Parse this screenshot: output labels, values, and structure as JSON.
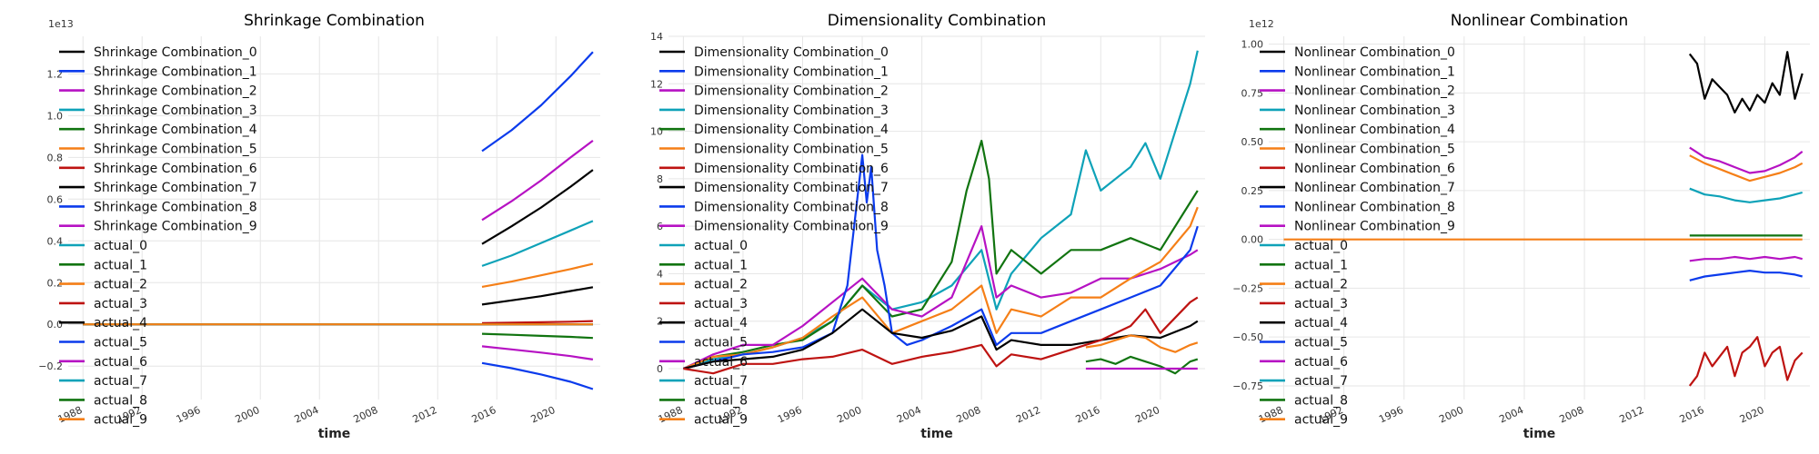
{
  "chart_data": [
    {
      "type": "line",
      "title": "Shrinkage Combination",
      "xlabel": "time",
      "ylabel": "",
      "offset_label": "1e13",
      "xlim": [
        1987,
        2023
      ],
      "ylim": [
        -0.36,
        1.38
      ],
      "x_ticks": [
        1988,
        1992,
        1996,
        2000,
        2004,
        2008,
        2012,
        2016,
        2020
      ],
      "y_ticks": [
        -0.2,
        0.0,
        0.2,
        0.4,
        0.6,
        0.8,
        1.0,
        1.2
      ],
      "y_tick_labels": [
        "−0.2",
        "0.0",
        "0.2",
        "0.4",
        "0.6",
        "0.8",
        "1.0",
        "1.2"
      ],
      "grid": true,
      "legend_position": "upper-left",
      "legend": [
        "Shrinkage Combination_0",
        "Shrinkage Combination_1",
        "Shrinkage Combination_2",
        "Shrinkage Combination_3",
        "Shrinkage Combination_4",
        "Shrinkage Combination_5",
        "Shrinkage Combination_6",
        "Shrinkage Combination_7",
        "Shrinkage Combination_8",
        "Shrinkage Combination_9",
        "actual_0",
        "actual_1",
        "actual_2",
        "actual_3",
        "actual_4",
        "actual_5",
        "actual_6",
        "actual_7",
        "actual_8",
        "actual_9"
      ],
      "series": [
        {
          "color": "#000000",
          "x": [
            2015,
            2017,
            2019,
            2021,
            2022.5
          ],
          "y": [
            0.385,
            0.47,
            0.56,
            0.66,
            0.74
          ]
        },
        {
          "color": "#0b3bec",
          "x": [
            2015,
            2017,
            2019,
            2021,
            2022.5
          ],
          "y": [
            0.83,
            0.93,
            1.05,
            1.19,
            1.305
          ]
        },
        {
          "color": "#b612c3",
          "x": [
            2015,
            2017,
            2019,
            2021,
            2022.5
          ],
          "y": [
            0.5,
            0.59,
            0.69,
            0.8,
            0.88
          ]
        },
        {
          "color": "#0ea2b8",
          "x": [
            2015,
            2017,
            2019,
            2021,
            2022.5
          ],
          "y": [
            0.28,
            0.33,
            0.39,
            0.45,
            0.495
          ]
        },
        {
          "color": "#117410",
          "x": [
            2015,
            2017,
            2019,
            2021,
            2022.5
          ],
          "y": [
            -0.045,
            -0.05,
            -0.055,
            -0.06,
            -0.065
          ]
        },
        {
          "color": "#f57f17",
          "x": [
            2015,
            2017,
            2019,
            2021,
            2022.5
          ],
          "y": [
            0.18,
            0.205,
            0.235,
            0.265,
            0.29
          ]
        },
        {
          "color": "#be1311",
          "x": [
            2015,
            2017,
            2019,
            2021,
            2022.5
          ],
          "y": [
            0.006,
            0.008,
            0.01,
            0.013,
            0.016
          ]
        },
        {
          "color": "#000000",
          "x": [
            2015,
            2017,
            2019,
            2021,
            2022.5
          ],
          "y": [
            0.095,
            0.115,
            0.135,
            0.16,
            0.178
          ]
        },
        {
          "color": "#0b3bec",
          "x": [
            2015,
            2017,
            2019,
            2021,
            2022.5
          ],
          "y": [
            -0.185,
            -0.21,
            -0.24,
            -0.275,
            -0.31
          ]
        },
        {
          "color": "#b612c3",
          "x": [
            2015,
            2017,
            2019,
            2021,
            2022.5
          ],
          "y": [
            -0.105,
            -0.12,
            -0.135,
            -0.152,
            -0.168
          ]
        },
        {
          "color": "#0ea2b8",
          "x": [
            1988,
            2022.5
          ],
          "y": [
            0.0,
            0.0
          ]
        },
        {
          "color": "#117410",
          "x": [
            1988,
            2022.5
          ],
          "y": [
            0.0,
            0.0
          ]
        },
        {
          "color": "#f57f17",
          "x": [
            1988,
            2022.5
          ],
          "y": [
            0.0,
            0.0
          ]
        },
        {
          "color": "#be1311",
          "x": [
            1988,
            2022.5
          ],
          "y": [
            0.0,
            0.0
          ]
        },
        {
          "color": "#000000",
          "x": [
            1988,
            2022.5
          ],
          "y": [
            0.0,
            0.0
          ]
        },
        {
          "color": "#0b3bec",
          "x": [
            1988,
            2022.5
          ],
          "y": [
            0.0,
            0.0
          ]
        },
        {
          "color": "#b612c3",
          "x": [
            1988,
            2022.5
          ],
          "y": [
            0.0,
            0.0
          ]
        },
        {
          "color": "#0ea2b8",
          "x": [
            1988,
            2022.5
          ],
          "y": [
            0.0,
            0.0
          ]
        },
        {
          "color": "#117410",
          "x": [
            1988,
            2022.5
          ],
          "y": [
            0.0,
            0.0
          ]
        },
        {
          "color": "#f57f17",
          "x": [
            1988,
            2022.5
          ],
          "y": [
            0.0,
            0.0
          ]
        }
      ]
    },
    {
      "type": "line",
      "title": "Dimensionality Combination",
      "xlabel": "time",
      "ylabel": "",
      "offset_label": "",
      "xlim": [
        1987,
        2023
      ],
      "ylim": [
        -1.3,
        14.0
      ],
      "x_ticks": [
        1988,
        1992,
        1996,
        2000,
        2004,
        2008,
        2012,
        2016,
        2020
      ],
      "y_ticks": [
        0,
        2,
        4,
        6,
        8,
        10,
        12,
        14
      ],
      "y_tick_labels": [
        "0",
        "2",
        "4",
        "6",
        "8",
        "10",
        "12",
        "14"
      ],
      "grid": true,
      "legend_position": "upper-left",
      "legend": [
        "Dimensionality Combination_0",
        "Dimensionality Combination_1",
        "Dimensionality Combination_2",
        "Dimensionality Combination_3",
        "Dimensionality Combination_4",
        "Dimensionality Combination_5",
        "Dimensionality Combination_6",
        "Dimensionality Combination_7",
        "Dimensionality Combination_8",
        "Dimensionality Combination_9",
        "actual_0",
        "actual_1",
        "actual_2",
        "actual_3",
        "actual_4",
        "actual_5",
        "actual_6",
        "actual_7",
        "actual_8",
        "actual_9"
      ],
      "series": [
        {
          "color": "#0ea2b8",
          "x": [
            1988,
            1990,
            1992,
            1994,
            1996,
            1998,
            2000,
            2002,
            2004,
            2006,
            2008,
            2009,
            2010,
            2012,
            2014,
            2015,
            2016,
            2018,
            2019,
            2020,
            2021,
            2022,
            2022.5
          ],
          "y": [
            0,
            0.4,
            0.6,
            0.9,
            1.3,
            2.0,
            3.5,
            2.5,
            2.8,
            3.5,
            5.0,
            2.5,
            4.0,
            5.5,
            6.5,
            9.2,
            7.5,
            8.5,
            9.5,
            8.0,
            10.0,
            12.0,
            13.4
          ]
        },
        {
          "color": "#117410",
          "x": [
            1988,
            1990,
            1992,
            1994,
            1996,
            1998,
            2000,
            2002,
            2004,
            2006,
            2007,
            2008,
            2008.5,
            2009,
            2010,
            2012,
            2014,
            2016,
            2018,
            2020,
            2021,
            2022,
            2022.5
          ],
          "y": [
            0,
            0.5,
            0.7,
            1.0,
            1.2,
            2.0,
            3.5,
            2.2,
            2.5,
            4.5,
            7.5,
            9.6,
            8.0,
            4.0,
            5.0,
            4.0,
            5.0,
            5.0,
            5.5,
            5.0,
            6.0,
            7.0,
            7.5
          ]
        },
        {
          "color": "#b612c3",
          "x": [
            1988,
            1990,
            1992,
            1994,
            1996,
            1998,
            2000,
            2002,
            2004,
            2006,
            2008,
            2009,
            2010,
            2012,
            2014,
            2016,
            2018,
            2020,
            2022,
            2022.5
          ],
          "y": [
            0,
            0.6,
            1.0,
            1.0,
            1.8,
            2.8,
            3.8,
            2.5,
            2.2,
            3.0,
            6.0,
            3.0,
            3.5,
            3.0,
            3.2,
            3.8,
            3.8,
            4.2,
            4.8,
            5.0
          ]
        },
        {
          "color": "#f57f17",
          "x": [
            1988,
            1990,
            1992,
            1994,
            1996,
            1998,
            2000,
            2002,
            2004,
            2006,
            2008,
            2009,
            2010,
            2012,
            2014,
            2016,
            2018,
            2020,
            2022,
            2022.5
          ],
          "y": [
            0,
            0.5,
            0.6,
            0.9,
            1.3,
            2.2,
            3.0,
            1.5,
            2.0,
            2.5,
            3.5,
            1.5,
            2.5,
            2.2,
            3.0,
            3.0,
            3.8,
            4.5,
            6.0,
            6.8
          ]
        },
        {
          "color": "#0b3bec",
          "x": [
            1988,
            1990,
            1992,
            1994,
            1996,
            1998,
            1999,
            2000,
            2000.3,
            2000.6,
            2001,
            2001.5,
            2002,
            2003,
            2004,
            2006,
            2008,
            2009,
            2010,
            2012,
            2014,
            2016,
            2018,
            2020,
            2022,
            2022.5
          ],
          "y": [
            0,
            0.3,
            0.6,
            0.7,
            0.9,
            1.5,
            3.5,
            9.0,
            7.0,
            8.5,
            5.0,
            3.5,
            1.5,
            1.0,
            1.2,
            1.8,
            2.5,
            1.0,
            1.5,
            1.5,
            2.0,
            2.5,
            3.0,
            3.5,
            5.0,
            6.0
          ]
        },
        {
          "color": "#000000",
          "x": [
            1988,
            1990,
            1992,
            1994,
            1996,
            1998,
            2000,
            2002,
            2004,
            2006,
            2008,
            2009,
            2010,
            2012,
            2014,
            2016,
            2018,
            2020,
            2022,
            2022.5
          ],
          "y": [
            0,
            0.3,
            0.4,
            0.5,
            0.8,
            1.5,
            2.5,
            1.5,
            1.3,
            1.6,
            2.2,
            0.8,
            1.2,
            1.0,
            1.0,
            1.2,
            1.4,
            1.3,
            1.8,
            2.0
          ]
        },
        {
          "color": "#be1311",
          "x": [
            1988,
            1990,
            1992,
            1994,
            1996,
            1998,
            2000,
            2002,
            2004,
            2006,
            2008,
            2009,
            2010,
            2012,
            2014,
            2016,
            2018,
            2019,
            2020,
            2022,
            2022.5
          ],
          "y": [
            0,
            -0.2,
            0.2,
            0.2,
            0.4,
            0.5,
            0.8,
            0.2,
            0.5,
            0.7,
            1.0,
            0.1,
            0.6,
            0.4,
            0.8,
            1.2,
            1.8,
            2.5,
            1.5,
            2.8,
            3.0
          ]
        },
        {
          "color": "#117410",
          "x": [
            2015,
            2016,
            2017,
            2018,
            2019,
            2020,
            2021,
            2022,
            2022.5
          ],
          "y": [
            0.3,
            0.4,
            0.2,
            0.5,
            0.3,
            0.1,
            -0.2,
            0.3,
            0.4
          ]
        },
        {
          "color": "#f57f17",
          "x": [
            2015,
            2016,
            2017,
            2018,
            2019,
            2020,
            2021,
            2022,
            2022.5
          ],
          "y": [
            0.9,
            1.0,
            1.2,
            1.4,
            1.3,
            0.9,
            0.7,
            1.0,
            1.1
          ]
        },
        {
          "color": "#b612c3",
          "x": [
            2015,
            2022.5
          ],
          "y": [
            0.0,
            0.0
          ]
        }
      ]
    },
    {
      "type": "line",
      "title": "Nonlinear Combination",
      "xlabel": "time",
      "ylabel": "",
      "offset_label": "1e12",
      "xlim": [
        1987,
        2023
      ],
      "ylim": [
        -0.82,
        1.04
      ],
      "x_ticks": [
        1988,
        1992,
        1996,
        2000,
        2004,
        2008,
        2012,
        2016,
        2020
      ],
      "y_ticks": [
        -0.75,
        -0.5,
        -0.25,
        0.0,
        0.25,
        0.5,
        0.75,
        1.0
      ],
      "y_tick_labels": [
        "−0.75",
        "−0.50",
        "−0.25",
        "0.00",
        "0.25",
        "0.50",
        "0.75",
        "1.00"
      ],
      "grid": true,
      "legend_position": "upper-left",
      "legend": [
        "Nonlinear Combination_0",
        "Nonlinear Combination_1",
        "Nonlinear Combination_2",
        "Nonlinear Combination_3",
        "Nonlinear Combination_4",
        "Nonlinear Combination_5",
        "Nonlinear Combination_6",
        "Nonlinear Combination_7",
        "Nonlinear Combination_8",
        "Nonlinear Combination_9",
        "actual_0",
        "actual_1",
        "actual_2",
        "actual_3",
        "actual_4",
        "actual_5",
        "actual_6",
        "actual_7",
        "actual_8",
        "actual_9"
      ],
      "series": [
        {
          "color": "#000000",
          "x": [
            2015,
            2015.5,
            2016,
            2016.5,
            2017,
            2017.5,
            2018,
            2018.5,
            2019,
            2019.5,
            2020,
            2020.5,
            2021,
            2021.5,
            2022,
            2022.5
          ],
          "y": [
            0.95,
            0.9,
            0.72,
            0.82,
            0.78,
            0.74,
            0.65,
            0.72,
            0.66,
            0.74,
            0.7,
            0.8,
            0.74,
            0.96,
            0.72,
            0.85
          ]
        },
        {
          "color": "#b612c3",
          "x": [
            2015,
            2016,
            2017,
            2018,
            2019,
            2020,
            2021,
            2022,
            2022.5
          ],
          "y": [
            0.47,
            0.42,
            0.4,
            0.37,
            0.34,
            0.35,
            0.38,
            0.42,
            0.45
          ]
        },
        {
          "color": "#f57f17",
          "x": [
            2015,
            2016,
            2017,
            2018,
            2019,
            2020,
            2021,
            2022,
            2022.5
          ],
          "y": [
            0.43,
            0.39,
            0.36,
            0.33,
            0.3,
            0.32,
            0.34,
            0.37,
            0.39
          ]
        },
        {
          "color": "#0ea2b8",
          "x": [
            2015,
            2016,
            2017,
            2018,
            2019,
            2020,
            2021,
            2022,
            2022.5
          ],
          "y": [
            0.26,
            0.23,
            0.22,
            0.2,
            0.19,
            0.2,
            0.21,
            0.23,
            0.24
          ]
        },
        {
          "color": "#117410",
          "x": [
            2015,
            2022.5
          ],
          "y": [
            0.02,
            0.02
          ]
        },
        {
          "color": "#b612c3",
          "x": [
            2015,
            2016,
            2017,
            2018,
            2019,
            2020,
            2021,
            2022,
            2022.5
          ],
          "y": [
            -0.11,
            -0.1,
            -0.1,
            -0.09,
            -0.1,
            -0.09,
            -0.1,
            -0.09,
            -0.1
          ]
        },
        {
          "color": "#0b3bec",
          "x": [
            2015,
            2016,
            2017,
            2018,
            2019,
            2020,
            2021,
            2022,
            2022.5
          ],
          "y": [
            -0.21,
            -0.19,
            -0.18,
            -0.17,
            -0.16,
            -0.17,
            -0.17,
            -0.18,
            -0.19
          ]
        },
        {
          "color": "#be1311",
          "x": [
            2015,
            2015.5,
            2016,
            2016.5,
            2017,
            2017.5,
            2018,
            2018.5,
            2019,
            2019.5,
            2020,
            2020.5,
            2021,
            2021.5,
            2022,
            2022.5
          ],
          "y": [
            -0.75,
            -0.7,
            -0.58,
            -0.65,
            -0.6,
            -0.55,
            -0.7,
            -0.58,
            -0.55,
            -0.5,
            -0.65,
            -0.58,
            -0.55,
            -0.72,
            -0.62,
            -0.58
          ]
        },
        {
          "color": "#f57f17",
          "x": [
            1988,
            2022.5
          ],
          "y": [
            0.0,
            0.0
          ]
        }
      ]
    }
  ]
}
